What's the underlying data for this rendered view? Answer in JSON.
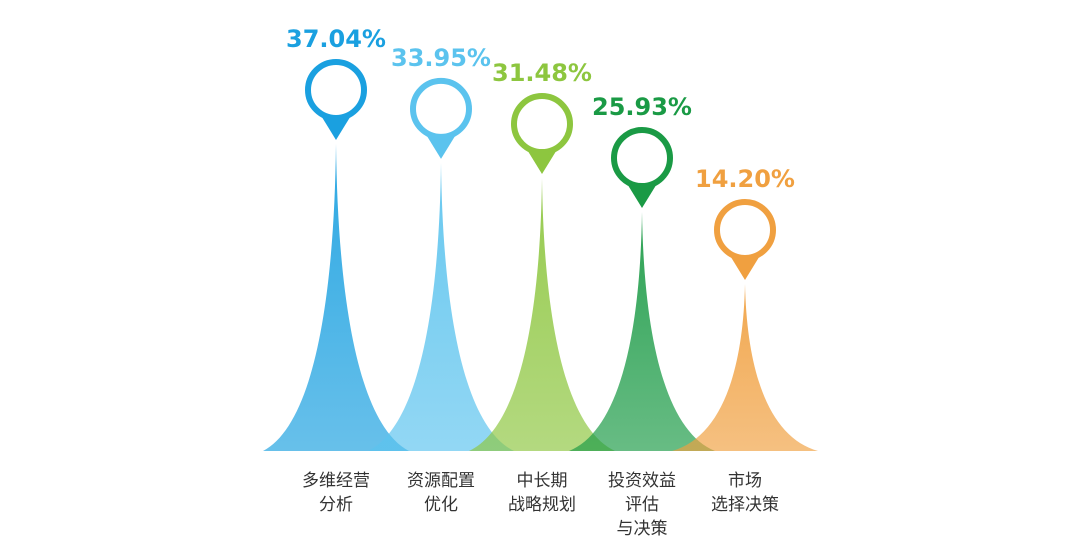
{
  "chart_data": {
    "type": "bar",
    "series": [
      {
        "values": [
          37.04,
          33.95,
          31.48,
          25.93,
          14.2
        ],
        "labels": [
          "37.04%",
          "33.95%",
          "31.48%",
          "25.93%",
          "14.20%"
        ]
      }
    ],
    "categories": [
      [
        "多维经营",
        "分析"
      ],
      [
        "资源配置",
        "优化"
      ],
      [
        "中长期",
        "战略规划"
      ],
      [
        "投资效益",
        "评估",
        "与决策"
      ],
      [
        "市场",
        "选择决策"
      ]
    ],
    "colors": [
      "#1aa0e0",
      "#5bc3ee",
      "#8dc63f",
      "#1a9a45",
      "#f0a040"
    ],
    "legend": "none",
    "grid": false
  }
}
